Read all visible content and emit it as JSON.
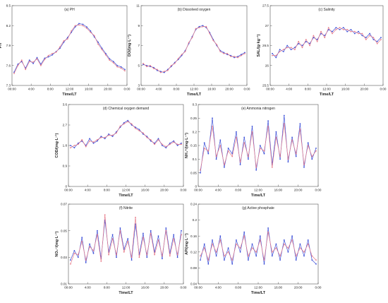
{
  "chart_data": [
    {
      "type": "line",
      "title": "(a) PH",
      "xlabel": "Time/LT",
      "ylabel": "PH",
      "ylim": [
        7.3,
        8.5
      ],
      "yticks": [
        "7.3",
        "7.6",
        "7.9",
        "8.2",
        "8.5"
      ],
      "xticks": [
        "00:00",
        "4:00",
        "8:00",
        "12:00",
        "16:00",
        "20:00",
        "0:00"
      ],
      "series": [
        {
          "color": "#3b4fd8",
          "values": [
            7.5,
            7.62,
            7.66,
            7.56,
            7.68,
            7.63,
            7.72,
            7.62,
            7.71,
            7.73,
            7.76,
            7.81,
            7.86,
            7.95,
            8.02,
            8.1,
            8.18,
            8.23,
            8.22,
            8.18,
            8.12,
            8.03,
            7.95,
            7.86,
            7.78,
            7.7,
            7.66,
            7.6,
            7.58,
            7.54
          ]
        },
        {
          "color": "#e77c8a",
          "values": [
            7.48,
            7.6,
            7.68,
            7.54,
            7.66,
            7.65,
            7.7,
            7.6,
            7.69,
            7.75,
            7.78,
            7.8,
            7.88,
            7.97,
            8.0,
            8.12,
            8.2,
            8.21,
            8.2,
            8.16,
            8.1,
            8.05,
            7.92,
            7.84,
            7.76,
            7.68,
            7.64,
            7.58,
            7.56,
            7.52
          ]
        }
      ]
    },
    {
      "type": "line",
      "title": "(b) Dissolved oxygen",
      "xlabel": "Time/LT",
      "ylabel": "DO/(mg·L⁻¹)",
      "ylim": [
        3,
        11
      ],
      "yticks": [
        "3",
        "5",
        "7",
        "9",
        "11"
      ],
      "xticks": [
        "00:00",
        "4:00",
        "8:00",
        "12:00",
        "16:00",
        "20:00",
        "0:00"
      ],
      "series": [
        {
          "color": "#3b4fd8",
          "values": [
            5.1,
            5.0,
            4.9,
            4.8,
            4.5,
            4.4,
            4.3,
            4.6,
            4.9,
            5.3,
            5.6,
            6.0,
            6.5,
            7.2,
            7.9,
            8.6,
            8.9,
            9.0,
            8.8,
            8.3,
            7.6,
            7.0,
            6.5,
            6.3,
            6.1,
            6.0,
            5.8,
            5.9,
            6.1,
            6.3
          ]
        },
        {
          "color": "#e77c8a",
          "values": [
            5.2,
            4.9,
            5.0,
            4.7,
            4.6,
            4.3,
            4.4,
            4.5,
            5.0,
            5.2,
            5.7,
            6.1,
            6.4,
            7.3,
            7.8,
            8.7,
            8.8,
            8.9,
            8.9,
            8.2,
            7.5,
            7.1,
            6.4,
            6.2,
            6.2,
            5.9,
            5.9,
            5.8,
            6.0,
            6.2
          ]
        }
      ]
    },
    {
      "type": "line",
      "title": "(c) Salinity",
      "xlabel": "Time/LT",
      "ylabel": "SAL/(g·kg⁻¹)",
      "ylim": [
        25.5,
        27.5
      ],
      "yticks": [
        "25.5",
        "26",
        "26.5",
        "27",
        "27.5"
      ],
      "xticks": [
        "00:00",
        "4:00",
        "8:00",
        "12:00",
        "16:00",
        "20:00",
        "0:00"
      ],
      "series": [
        {
          "color": "#3b4fd8",
          "values": [
            26.3,
            26.2,
            26.4,
            26.35,
            26.5,
            26.4,
            26.45,
            26.55,
            26.5,
            26.6,
            26.55,
            26.7,
            26.65,
            26.8,
            26.75,
            26.9,
            26.85,
            26.95,
            26.9,
            26.95,
            26.85,
            26.9,
            26.8,
            26.85,
            26.75,
            26.7,
            26.8,
            26.65,
            26.6,
            26.7
          ]
        },
        {
          "color": "#e77c8a",
          "values": [
            26.25,
            26.25,
            26.35,
            26.4,
            26.45,
            26.45,
            26.4,
            26.6,
            26.45,
            26.65,
            26.5,
            26.75,
            26.6,
            26.85,
            26.7,
            26.95,
            26.8,
            26.9,
            26.95,
            26.9,
            26.9,
            26.85,
            26.85,
            26.8,
            26.8,
            26.65,
            26.75,
            26.7,
            26.55,
            26.65
          ]
        }
      ]
    },
    {
      "type": "line",
      "title": "(d) Chemical oxygen demand",
      "xlabel": "Time/LT",
      "ylabel": "COD/(mg·L⁻¹)",
      "ylim": [
        0,
        3.6
      ],
      "yticks": [
        "0",
        "0.9",
        "1.8",
        "2.7",
        "3.6"
      ],
      "xticks": [
        "00:00",
        "4:00",
        "8:00",
        "12:00",
        "16:00",
        "20:00",
        "0:00"
      ],
      "series": [
        {
          "color": "#3b4fd8",
          "values": [
            1.8,
            1.7,
            1.9,
            2.0,
            1.8,
            2.1,
            1.9,
            2.0,
            2.2,
            2.1,
            2.3,
            2.2,
            2.4,
            2.6,
            2.8,
            2.9,
            2.7,
            2.6,
            2.5,
            2.3,
            2.2,
            2.0,
            1.9,
            2.1,
            1.8,
            1.7,
            1.9,
            2.0,
            1.8,
            1.9
          ]
        },
        {
          "color": "#e77c8a",
          "values": [
            1.7,
            1.8,
            1.85,
            2.05,
            1.75,
            2.0,
            1.95,
            2.05,
            2.15,
            2.15,
            2.25,
            2.25,
            2.35,
            2.65,
            2.75,
            2.85,
            2.75,
            2.55,
            2.45,
            2.35,
            2.15,
            2.05,
            1.85,
            2.05,
            1.85,
            1.75,
            1.85,
            1.95,
            1.85,
            1.85
          ]
        }
      ]
    },
    {
      "type": "line",
      "title": "(e) Ammonia nitrogen",
      "xlabel": "Time/LT",
      "ylabel": "NH₄⁺/(mg·L⁻¹)",
      "ylim": [
        0,
        0.3
      ],
      "yticks": [
        "0",
        "0.05",
        "0.1",
        "0.15",
        "0.2",
        "0.25",
        "0.3"
      ],
      "xticks": [
        "00:00",
        "4:00",
        "8:00",
        "12:00",
        "16:00",
        "20:00",
        "0:00"
      ],
      "series": [
        {
          "color": "#3b4fd8",
          "values": [
            0.05,
            0.16,
            0.12,
            0.25,
            0.1,
            0.17,
            0.07,
            0.14,
            0.12,
            0.2,
            0.08,
            0.18,
            0.1,
            0.22,
            0.06,
            0.15,
            0.12,
            0.24,
            0.08,
            0.2,
            0.1,
            0.26,
            0.09,
            0.18,
            0.11,
            0.23,
            0.07,
            0.16,
            0.1,
            0.14
          ]
        },
        {
          "color": "#e77c8a",
          "values": [
            0.06,
            0.14,
            0.13,
            0.22,
            0.11,
            0.15,
            0.08,
            0.13,
            0.11,
            0.18,
            0.09,
            0.16,
            0.11,
            0.2,
            0.07,
            0.14,
            0.13,
            0.22,
            0.07,
            0.18,
            0.11,
            0.23,
            0.1,
            0.17,
            0.12,
            0.21,
            0.08,
            0.15,
            0.11,
            0.13
          ]
        }
      ]
    },
    {
      "type": "line",
      "title": "(f) Nitrite",
      "xlabel": "Time/LT",
      "ylabel": "NO₂⁻/(mg·L⁻¹)",
      "ylim": [
        0.01,
        0.07
      ],
      "yticks": [
        "0.01",
        "0.03",
        "0.05",
        "0.07"
      ],
      "xticks": [
        "00:00",
        "4:00",
        "8:00",
        "12:00",
        "16:00",
        "20:00",
        "0:00"
      ],
      "series": [
        {
          "color": "#3b4fd8",
          "values": [
            0.028,
            0.035,
            0.03,
            0.045,
            0.026,
            0.04,
            0.033,
            0.05,
            0.029,
            0.058,
            0.034,
            0.047,
            0.03,
            0.052,
            0.036,
            0.044,
            0.028,
            0.055,
            0.032,
            0.048,
            0.03,
            0.05,
            0.034,
            0.046,
            0.029,
            0.052,
            0.033,
            0.047,
            0.03,
            0.05
          ]
        },
        {
          "color": "#e77c8a",
          "values": [
            0.025,
            0.033,
            0.032,
            0.042,
            0.028,
            0.038,
            0.035,
            0.047,
            0.027,
            0.062,
            0.032,
            0.044,
            0.032,
            0.05,
            0.034,
            0.042,
            0.03,
            0.06,
            0.03,
            0.045,
            0.032,
            0.048,
            0.032,
            0.043,
            0.031,
            0.05,
            0.031,
            0.044,
            0.032,
            0.047
          ]
        }
      ]
    },
    {
      "type": "line",
      "title": "(g) Active phosphate",
      "xlabel": "Time/LT",
      "ylabel": "AP/(mg·L⁻¹)",
      "ylim": [
        0.04,
        0.24
      ],
      "yticks": [
        "0.04",
        "0.08",
        "0.12",
        "0.16",
        "0.2",
        "0.24"
      ],
      "xticks": [
        "00:00",
        "4:00",
        "8:00",
        "12:00",
        "16:00",
        "20:00",
        "0:00"
      ],
      "series": [
        {
          "color": "#3b4fd8",
          "values": [
            0.1,
            0.14,
            0.09,
            0.15,
            0.11,
            0.16,
            0.1,
            0.13,
            0.09,
            0.15,
            0.12,
            0.17,
            0.1,
            0.14,
            0.11,
            0.16,
            0.09,
            0.18,
            0.11,
            0.14,
            0.1,
            0.15,
            0.12,
            0.16,
            0.1,
            0.14,
            0.11,
            0.15,
            0.1,
            0.09
          ]
        },
        {
          "color": "#e77c8a",
          "values": [
            0.11,
            0.13,
            0.1,
            0.14,
            0.12,
            0.15,
            0.11,
            0.12,
            0.1,
            0.14,
            0.13,
            0.16,
            0.11,
            0.13,
            0.12,
            0.15,
            0.1,
            0.17,
            0.12,
            0.13,
            0.11,
            0.14,
            0.13,
            0.15,
            0.11,
            0.13,
            0.12,
            0.14,
            0.11,
            0.1
          ]
        }
      ]
    }
  ]
}
